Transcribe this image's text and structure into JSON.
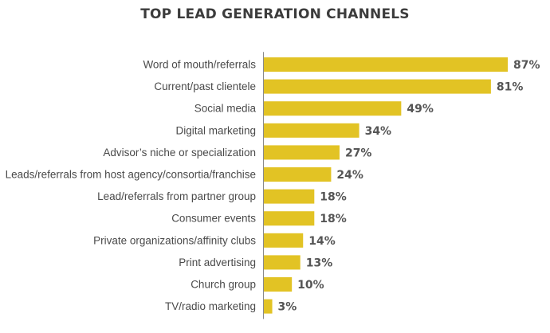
{
  "chart_data": {
    "type": "bar",
    "orientation": "horizontal",
    "title": "TOP LEAD GENERATION CHANNELS",
    "categories": [
      "Word of mouth/referrals",
      "Current/past clientele",
      "Social media",
      "Digital marketing",
      "Advisor’s niche or specialization",
      "Leads/referrals from host agency/consortia/franchise",
      "Lead/referrals from partner group",
      "Consumer events",
      "Private organizations/affinity clubs",
      "Print advertising",
      "Church group",
      "TV/radio marketing"
    ],
    "values": [
      87,
      81,
      49,
      34,
      27,
      24,
      18,
      18,
      14,
      13,
      10,
      3
    ],
    "value_labels": [
      "87%",
      "81%",
      "49%",
      "34%",
      "27%",
      "24%",
      "18%",
      "18%",
      "14%",
      "13%",
      "10%",
      "3%"
    ],
    "unit": "%",
    "xlim": [
      0,
      87
    ],
    "xlabel": "",
    "ylabel": "",
    "grid": false,
    "legend": "none",
    "colors": {
      "bar": "#E2C324",
      "axis": "#8a8a8a"
    }
  }
}
